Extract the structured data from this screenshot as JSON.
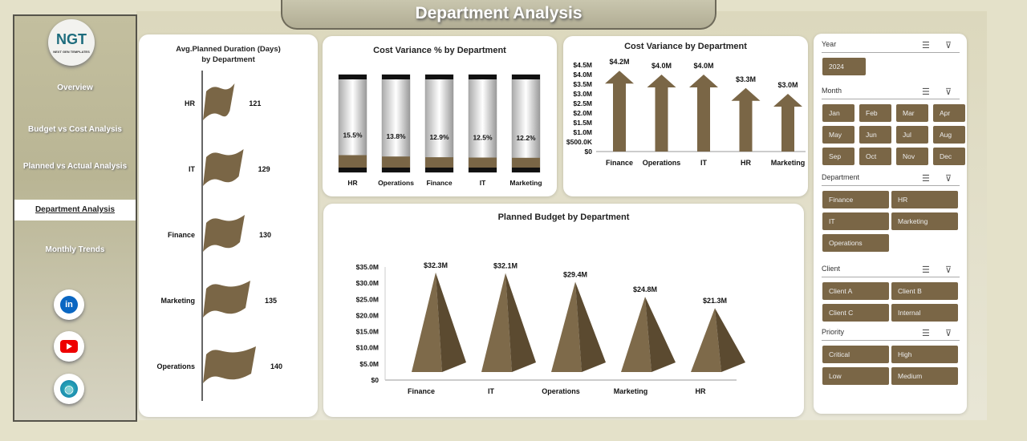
{
  "header": {
    "title": "Department Analysis"
  },
  "sidebar": {
    "logo": "NGT",
    "logo_sub": "NEXT GEN TEMPLATES",
    "items": [
      {
        "label": "Overview"
      },
      {
        "label": "Budget vs Cost Analysis"
      },
      {
        "label": "Planned vs Actual  Analysis"
      },
      {
        "label": "Department Analysis",
        "active": true
      },
      {
        "label": "Monthly Trends"
      }
    ],
    "social": [
      "linkedin-icon",
      "youtube-icon",
      "globe-icon"
    ]
  },
  "colors": {
    "accent": "#7a6646"
  },
  "chart_data": [
    {
      "type": "bar",
      "title": "Avg.Planned Duration (Days) by Department",
      "categories": [
        "HR",
        "IT",
        "Finance",
        "Marketing",
        "Operations"
      ],
      "values": [
        121,
        129,
        130,
        135,
        140
      ],
      "labels": [
        "121",
        "129",
        "130",
        "135",
        "140"
      ]
    },
    {
      "type": "bar",
      "title": "Cost Variance % by Department",
      "categories": [
        "HR",
        "Operations",
        "Finance",
        "IT",
        "Marketing"
      ],
      "values": [
        15.5,
        13.8,
        12.9,
        12.5,
        12.2
      ],
      "labels": [
        "15.5%",
        "13.8%",
        "12.9%",
        "12.5%",
        "12.2%"
      ]
    },
    {
      "type": "bar",
      "title": "Cost Variance by Department",
      "categories": [
        "Finance",
        "Operations",
        "IT",
        "HR",
        "Marketing"
      ],
      "values": [
        4.2,
        4.0,
        4.0,
        3.3,
        3.0
      ],
      "labels": [
        "$4.2M",
        "$4.0M",
        "$4.0M",
        "$3.3M",
        "$3.0M"
      ],
      "ylim": [
        0,
        4.5
      ],
      "yticks": [
        "$0",
        "$500.0K",
        "$1.0M",
        "$1.5M",
        "$2.0M",
        "$2.5M",
        "$3.0M",
        "$3.5M",
        "$4.0M",
        "$4.5M"
      ]
    },
    {
      "type": "bar",
      "title": "Planned Budget by Department",
      "categories": [
        "Finance",
        "IT",
        "Operations",
        "Marketing",
        "HR"
      ],
      "values": [
        32.3,
        32.1,
        29.4,
        24.8,
        21.3
      ],
      "labels": [
        "$32.3M",
        "$32.1M",
        "$29.4M",
        "$24.8M",
        "$21.3M"
      ],
      "ylim": [
        0,
        35
      ],
      "yticks": [
        "$0",
        "$5.0M",
        "$10.0M",
        "$15.0M",
        "$20.0M",
        "$25.0M",
        "$30.0M",
        "$35.0M"
      ]
    }
  ],
  "slicers": [
    {
      "label": "Year",
      "items": [
        "2024"
      ]
    },
    {
      "label": "Month",
      "items": [
        "Jan",
        "Feb",
        "Mar",
        "Apr",
        "May",
        "Jun",
        "Jul",
        "Aug",
        "Sep",
        "Oct",
        "Nov",
        "Dec"
      ]
    },
    {
      "label": "Department",
      "items": [
        "Finance",
        "HR",
        "IT",
        "Marketing",
        "Operations"
      ]
    },
    {
      "label": "Client",
      "items": [
        "Client A",
        "Client B",
        "Client C",
        "Internal"
      ]
    },
    {
      "label": "Priority",
      "items": [
        "Critical",
        "High",
        "Low",
        "Medium"
      ]
    }
  ]
}
